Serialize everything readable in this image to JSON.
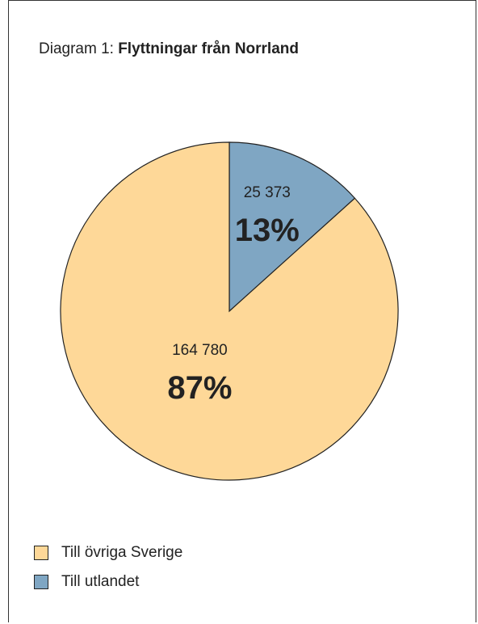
{
  "title": {
    "prefix": "Diagram 1:",
    "main": "Flyttningar från Norrland"
  },
  "chart_data": {
    "type": "pie",
    "title": "Diagram 1: Flyttningar från Norrland",
    "slices": [
      {
        "label": "Till utlandet",
        "value": 25373,
        "value_label": "25 373",
        "percent_label": "13%",
        "color": "#7fa6c3"
      },
      {
        "label": "Till övriga Sverige",
        "value": 164780,
        "value_label": "164 780",
        "percent_label": "87%",
        "color": "#fed898"
      }
    ],
    "legend": {
      "placement": "bottom-left",
      "entries": [
        {
          "label": "Till övriga Sverige",
          "color": "#fed898"
        },
        {
          "label": "Till utlandet",
          "color": "#7fa6c3"
        }
      ]
    }
  }
}
